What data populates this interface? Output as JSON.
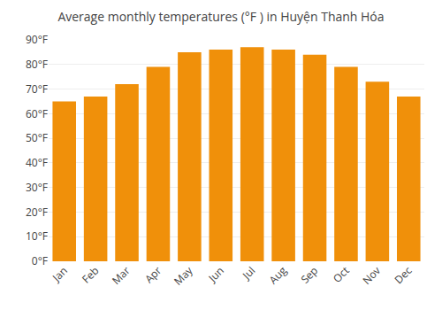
{
  "chart_data": {
    "type": "bar",
    "title": "Average monthly temperatures (°F ) in Huyện Thanh Hóa",
    "categories": [
      "Jan",
      "Feb",
      "Mar",
      "Apr",
      "May",
      "Jun",
      "Jul",
      "Aug",
      "Sep",
      "Oct",
      "Nov",
      "Dec"
    ],
    "values": [
      65,
      67,
      72,
      79,
      85,
      86,
      87,
      86,
      84,
      79,
      73,
      67
    ],
    "color": "#F0900A",
    "ylim": [
      0,
      90
    ],
    "yticks": [
      {
        "value": 0,
        "label": "0°F"
      },
      {
        "value": 10,
        "label": "10°F"
      },
      {
        "value": 20,
        "label": "20°F"
      },
      {
        "value": 30,
        "label": "30°F"
      },
      {
        "value": 40,
        "label": "40°F"
      },
      {
        "value": 50,
        "label": "50°F"
      },
      {
        "value": 60,
        "label": "60°F"
      },
      {
        "value": 70,
        "label": "70°F"
      },
      {
        "value": 80,
        "label": "80°F"
      },
      {
        "value": 90,
        "label": "90°F"
      }
    ],
    "grid": true
  }
}
